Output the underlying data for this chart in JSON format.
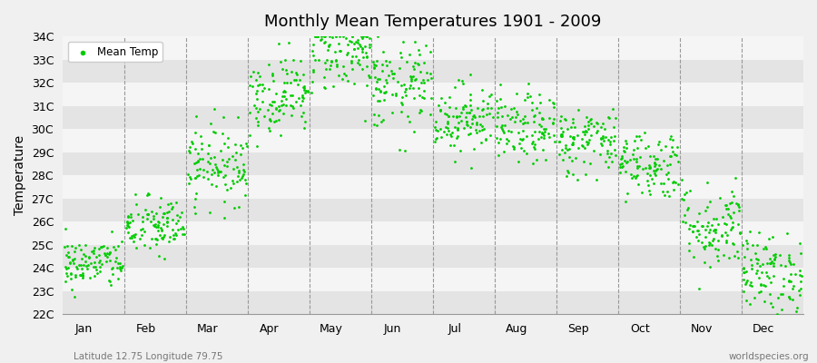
{
  "title": "Monthly Mean Temperatures 1901 - 2009",
  "ylabel": "Temperature",
  "subtitle_left": "Latitude 12.75 Longitude 79.75",
  "subtitle_right": "worldspecies.org",
  "legend_label": "Mean Temp",
  "dot_color": "#00cc00",
  "background_color": "#f0f0f0",
  "plot_bg_color": "#f0f0f0",
  "band_light": "#f5f5f5",
  "band_dark": "#e4e4e4",
  "ylim": [
    22,
    34
  ],
  "ytick_labels": [
    "22C",
    "23C",
    "24C",
    "25C",
    "26C",
    "27C",
    "28C",
    "29C",
    "30C",
    "31C",
    "32C",
    "33C",
    "34C"
  ],
  "ytick_values": [
    22,
    23,
    24,
    25,
    26,
    27,
    28,
    29,
    30,
    31,
    32,
    33,
    34
  ],
  "month_names": [
    "Jan",
    "Feb",
    "Mar",
    "Apr",
    "May",
    "Jun",
    "Jul",
    "Aug",
    "Sep",
    "Oct",
    "Nov",
    "Dec"
  ],
  "monthly_means": [
    24.2,
    25.8,
    28.5,
    31.5,
    33.3,
    31.8,
    30.5,
    30.0,
    29.5,
    28.5,
    25.8,
    23.8
  ],
  "monthly_stds": [
    0.55,
    0.65,
    0.85,
    0.85,
    0.85,
    0.95,
    0.75,
    0.75,
    0.75,
    0.75,
    0.95,
    0.85
  ],
  "n_years": 109,
  "seed": 42,
  "dot_size": 4
}
